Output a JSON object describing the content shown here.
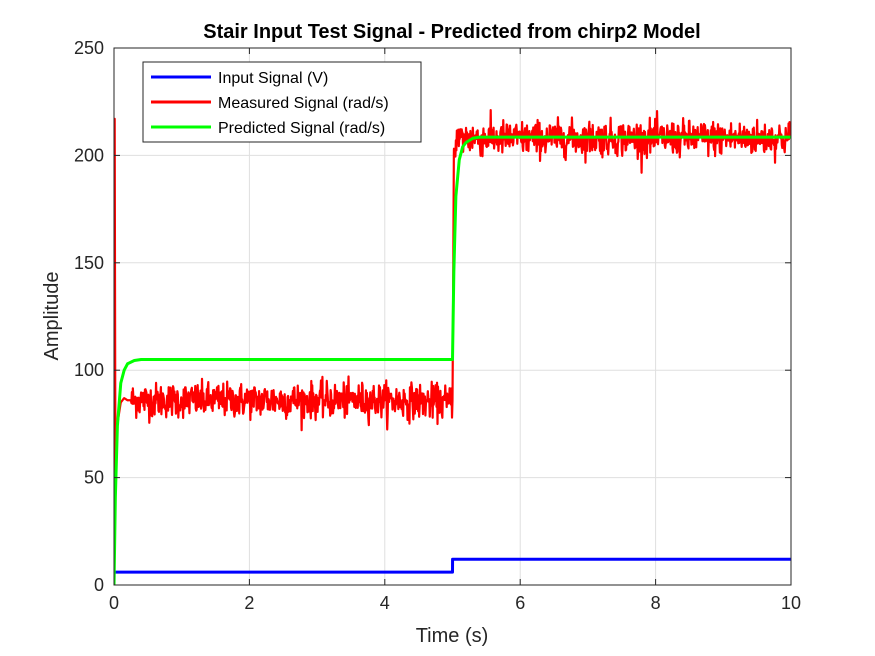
{
  "chart_data": {
    "type": "line",
    "title": "Stair Input Test Signal - Predicted from chirp2 Model",
    "xlabel": "Time (s)",
    "ylabel": "Amplitude",
    "xlim": [
      0,
      10
    ],
    "ylim": [
      0,
      250
    ],
    "xticks": [
      "0",
      "2",
      "4",
      "6",
      "8",
      "10"
    ],
    "yticks": [
      "0",
      "50",
      "100",
      "150",
      "200",
      "250"
    ],
    "grid": true,
    "legend_position": "top-left",
    "series": [
      {
        "name": "Input Signal (V)",
        "color": "#0000ff",
        "x": [
          0,
          0.001,
          5.0,
          5.001,
          10
        ],
        "y": [
          0,
          6,
          6,
          12,
          12
        ]
      },
      {
        "name": "Measured Signal (rad/s)",
        "color": "#ff0000",
        "x": [
          0,
          0.01,
          0.02,
          0.05,
          0.1,
          0.15,
          0.2,
          1,
          2,
          3,
          4,
          4.95,
          5.0,
          5.02,
          5.05,
          5.1,
          6,
          7,
          8,
          9,
          10
        ],
        "y": [
          0,
          217,
          60,
          75,
          85,
          87,
          86,
          86,
          86,
          86,
          86,
          85,
          86,
          200,
          207,
          208,
          208,
          208,
          208,
          208,
          208
        ],
        "noise_sd": 4
      },
      {
        "name": "Predicted Signal (rad/s)",
        "color": "#00ff00",
        "x": [
          0,
          0.02,
          0.05,
          0.1,
          0.15,
          0.2,
          0.3,
          0.4,
          1,
          2,
          3,
          4,
          5.0,
          5.02,
          5.05,
          5.1,
          5.15,
          5.2,
          5.3,
          5.4,
          6,
          7,
          8,
          9,
          10
        ],
        "y": [
          0,
          41,
          74,
          94,
          100,
          103,
          104.5,
          105,
          105,
          105,
          105,
          105,
          105,
          146,
          181,
          198,
          204,
          206,
          208,
          208.5,
          208.5,
          208.5,
          208.5,
          208.5,
          208.5
        ]
      }
    ]
  }
}
